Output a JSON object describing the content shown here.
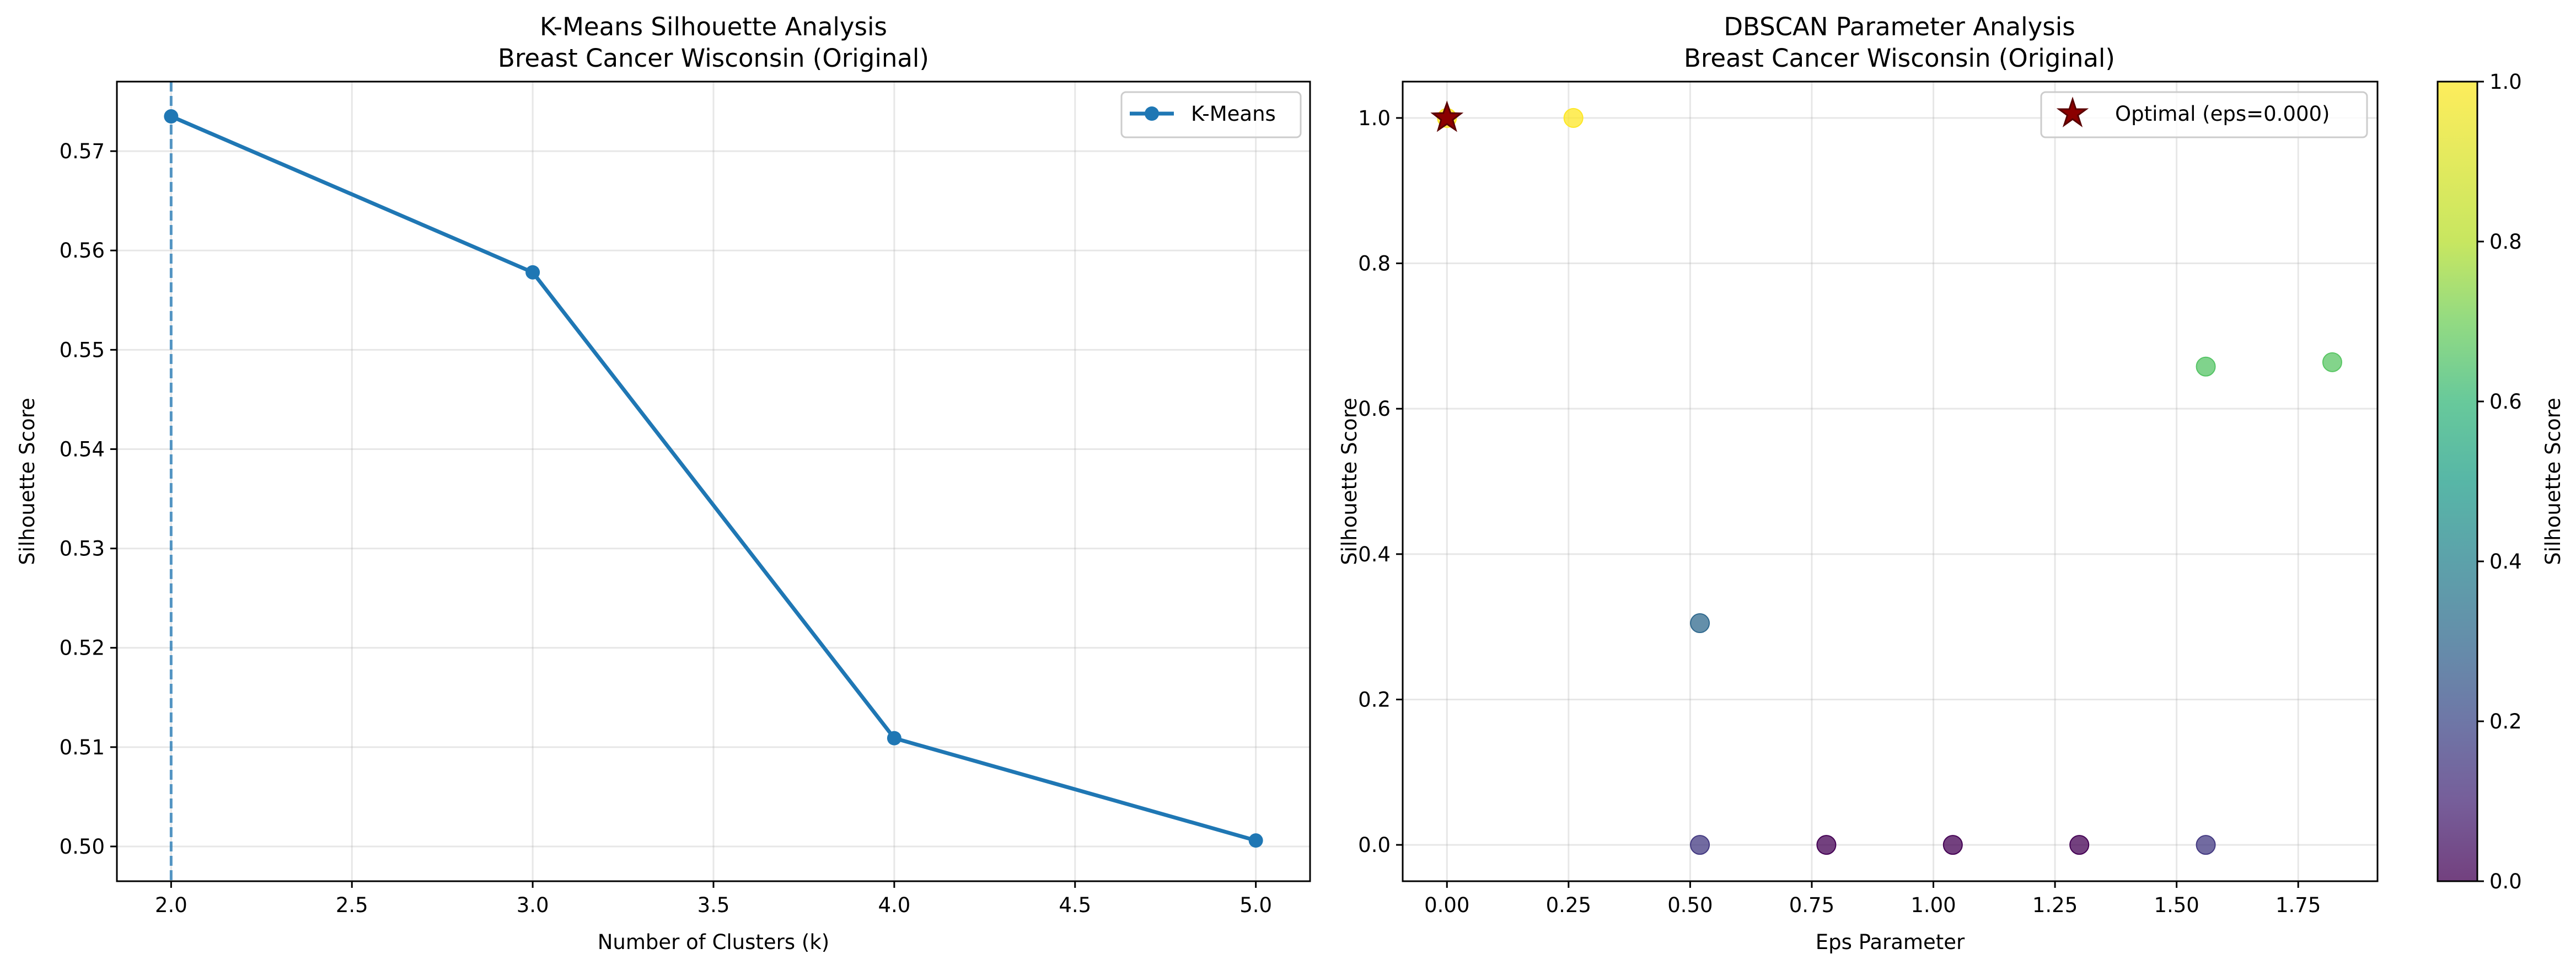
{
  "chart_data": [
    {
      "type": "line",
      "title": "K-Means Silhouette Analysis",
      "subtitle": "Breast Cancer Wisconsin (Original)",
      "xlabel": "Number of Clusters (k)",
      "ylabel": "Silhouette Score",
      "xlim": [
        1.85,
        5.15
      ],
      "ylim": [
        0.4965,
        0.577
      ],
      "xticks": [
        2.0,
        2.5,
        3.0,
        3.5,
        4.0,
        4.5,
        5.0
      ],
      "xtick_labels": [
        "2.0",
        "2.5",
        "3.0",
        "3.5",
        "4.0",
        "4.5",
        "5.0"
      ],
      "yticks": [
        0.5,
        0.51,
        0.52,
        0.53,
        0.54,
        0.55,
        0.56,
        0.57
      ],
      "ytick_labels": [
        "0.50",
        "0.51",
        "0.52",
        "0.53",
        "0.54",
        "0.55",
        "0.56",
        "0.57"
      ],
      "grid": true,
      "legend_position": "top-right",
      "series": [
        {
          "name": "K-Means",
          "color": "#1f77b4",
          "x": [
            2,
            3,
            4,
            5
          ],
          "y": [
            0.5735,
            0.5578,
            0.5109,
            0.5006
          ]
        }
      ],
      "vline": {
        "x": 2.0,
        "style": "dashed",
        "color": "#1f77b4"
      }
    },
    {
      "type": "scatter",
      "title": "DBSCAN Parameter Analysis",
      "subtitle": "Breast Cancer Wisconsin (Original)",
      "xlabel": "Eps Parameter",
      "ylabel": "Silhouette Score",
      "xlim": [
        -0.091,
        1.913
      ],
      "ylim": [
        -0.05,
        1.05
      ],
      "xticks": [
        0.0,
        0.25,
        0.5,
        0.75,
        1.0,
        1.25,
        1.5,
        1.75
      ],
      "xtick_labels": [
        "0.00",
        "0.25",
        "0.50",
        "0.75",
        "1.00",
        "1.25",
        "1.50",
        "1.75"
      ],
      "yticks": [
        0.0,
        0.2,
        0.4,
        0.6,
        0.8,
        1.0
      ],
      "ytick_labels": [
        "0.0",
        "0.2",
        "0.4",
        "0.6",
        "0.8",
        "1.0"
      ],
      "grid": true,
      "legend_position": "top-right",
      "colormap": "viridis",
      "points": [
        {
          "x": 0.0,
          "y": 1.0
        },
        {
          "x": 0.26,
          "y": 1.0
        },
        {
          "x": 0.52,
          "y": 0.305
        },
        {
          "x": 0.52,
          "y": 0.0,
          "c": 0.15
        },
        {
          "x": 0.78,
          "y": 0.0,
          "c": 0.0
        },
        {
          "x": 1.04,
          "y": 0.0,
          "c": 0.0
        },
        {
          "x": 1.3,
          "y": 0.0,
          "c": 0.0
        },
        {
          "x": 1.56,
          "y": 0.0,
          "c": 0.15
        },
        {
          "x": 1.56,
          "y": 0.658
        },
        {
          "x": 1.82,
          "y": 0.664
        }
      ],
      "optimal": {
        "x": 0.0,
        "y": 1.0,
        "label": "Optimal (eps=0.000)",
        "color": "#8b0000"
      },
      "colorbar": {
        "label": "Silhouette Score",
        "range": [
          0.0,
          1.0
        ],
        "ticks": [
          0.0,
          0.2,
          0.4,
          0.6,
          0.8,
          1.0
        ],
        "tick_labels": [
          "0.0",
          "0.2",
          "0.4",
          "0.6",
          "0.8",
          "1.0"
        ]
      }
    }
  ]
}
